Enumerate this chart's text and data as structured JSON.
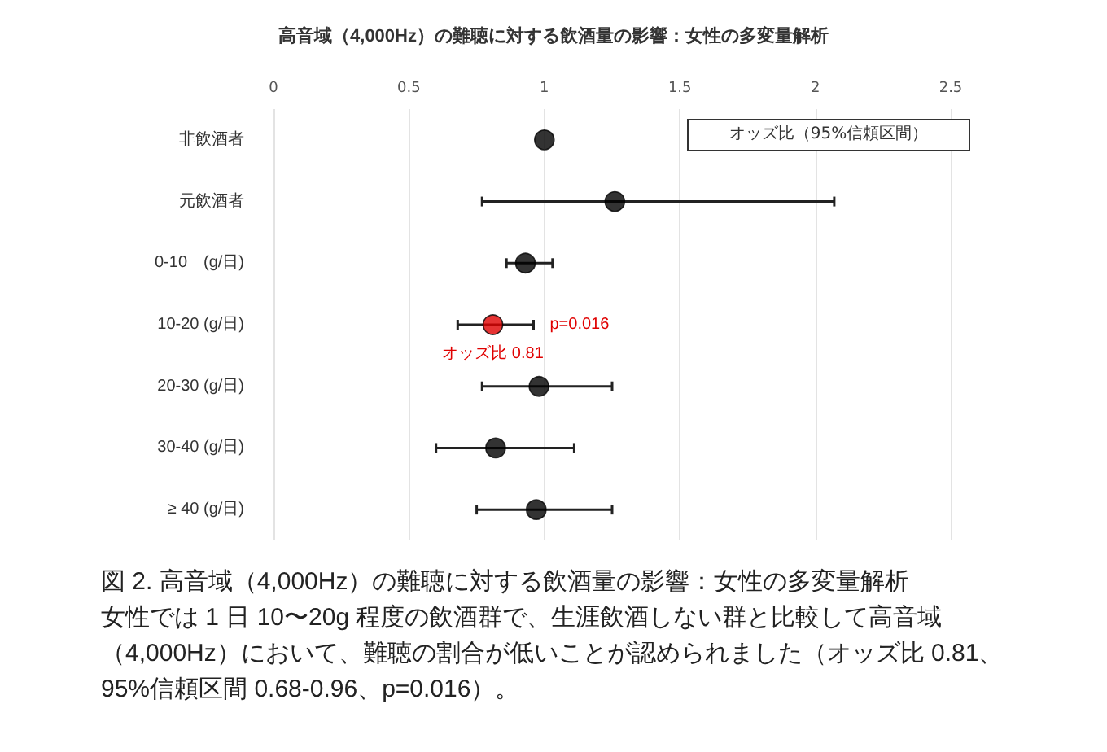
{
  "chart_data": {
    "type": "scatter",
    "orientation": "horizontal",
    "title": "高音域（4,000Hz）の難聴に対する飲酒量の影響：女性の多変量解析",
    "xlabel": "オッズ比（95%信頼区間）",
    "categories": [
      "非飲酒者",
      "元飲酒者",
      "0-10　(g/日)",
      "10-20 (g/日)",
      "20-30 (g/日)",
      "30-40 (g/日)",
      "≥ 40 (g/日)"
    ],
    "values": [
      1.0,
      1.26,
      0.93,
      0.81,
      0.98,
      0.82,
      0.97
    ],
    "errors": [
      null,
      [
        0.77,
        2.07
      ],
      [
        0.86,
        1.03
      ],
      [
        0.68,
        0.96
      ],
      [
        0.77,
        1.25
      ],
      [
        0.6,
        1.11
      ],
      [
        0.75,
        1.25
      ]
    ],
    "colors": [
      "#000000",
      "#000000",
      "#000000",
      "#e00000",
      "#000000",
      "#000000",
      "#000000"
    ],
    "xlim": [
      0,
      2.5
    ],
    "xticks": [
      0,
      0.5,
      1,
      1.5,
      2,
      2.5
    ],
    "grid": "x",
    "marker": "circle",
    "annotations": [
      {
        "text": "p=0.016",
        "x": 0.96,
        "y": "10-20 (g/日)"
      },
      {
        "text": "オッズ比 0.81",
        "x": 0.81,
        "y": "10-20 (g/日)"
      },
      "図 2. 高音域（4,000Hz）の難聴に対する飲酒量の影響：女性の多変量解析",
      "女性では 1 日 10〜20g 程度の飲酒群で、生涯飲酒しない群と比較して高音域（4,000Hz）において、難聴の割合が低いことが認められました（オッズ比 0.81、95%信頼区間 0.68-0.96、p=0.016）。"
    ]
  }
}
